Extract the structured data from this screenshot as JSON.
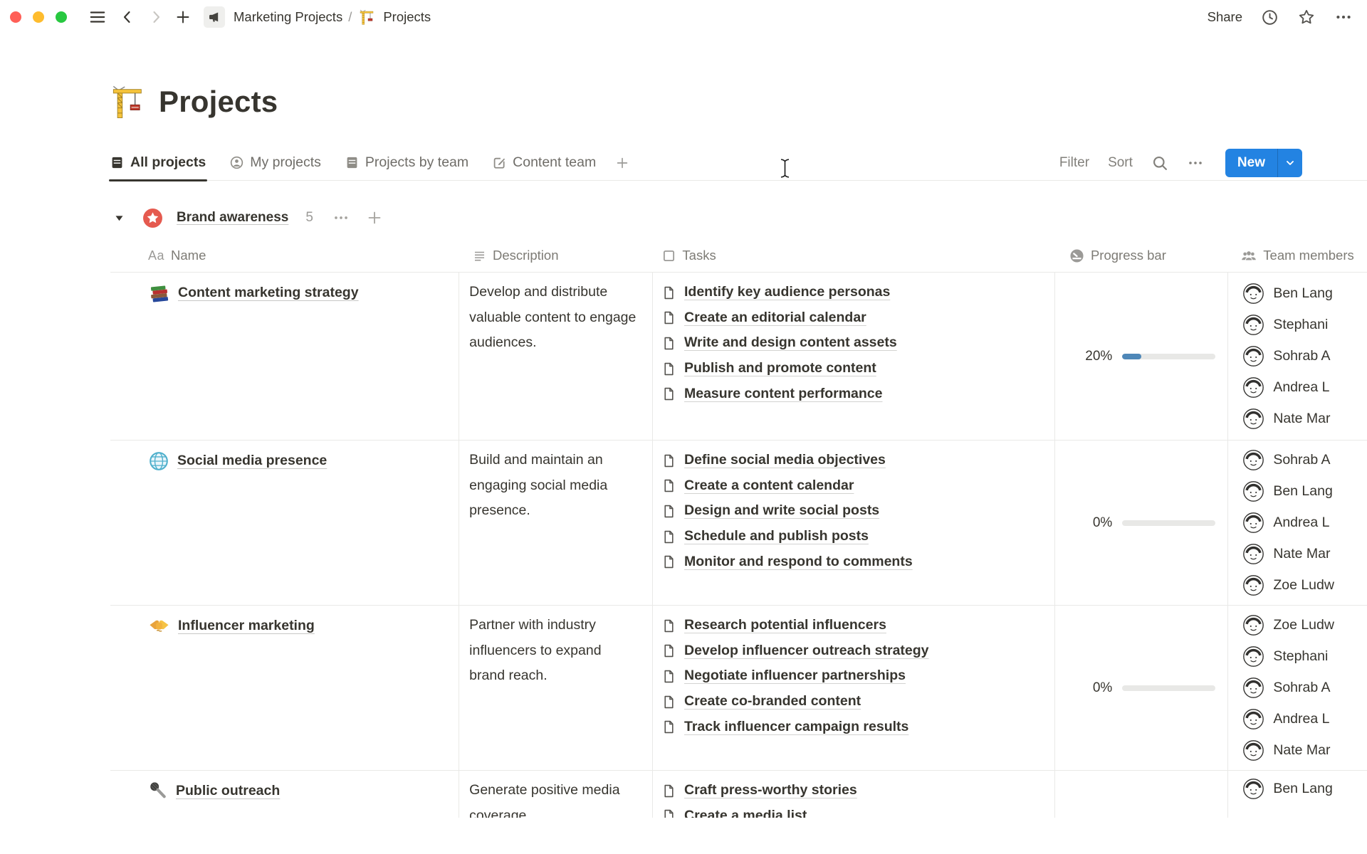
{
  "window": {
    "breadcrumb": {
      "root": "Marketing Projects",
      "separator": "/",
      "current": "Projects"
    },
    "actions": {
      "share": "Share"
    }
  },
  "page": {
    "icon": "crane-icon",
    "title": "Projects"
  },
  "tabs": [
    {
      "label": "All projects",
      "icon": "table-icon",
      "active": true
    },
    {
      "label": "My projects",
      "icon": "person-circle-icon",
      "active": false
    },
    {
      "label": "Projects by team",
      "icon": "table-icon",
      "active": false
    },
    {
      "label": "Content team",
      "icon": "edit-icon",
      "active": false
    }
  ],
  "toolbar": {
    "filter": "Filter",
    "sort": "Sort",
    "new_label": "New"
  },
  "group": {
    "name": "Brand awareness",
    "count": "5"
  },
  "table": {
    "columns": [
      {
        "key": "name",
        "icon": "text-icon",
        "label": "Name"
      },
      {
        "key": "desc",
        "icon": "lines-icon",
        "label": "Description"
      },
      {
        "key": "tasks",
        "icon": "checkbox-icon",
        "label": "Tasks"
      },
      {
        "key": "progress",
        "icon": "gauge-icon",
        "label": "Progress bar"
      },
      {
        "key": "team",
        "icon": "people-icon",
        "label": "Team members"
      }
    ],
    "rows": [
      {
        "icon": "books-icon",
        "name": "Content marketing strategy",
        "description": "Develop and distribute valuable content to engage audiences.",
        "tasks": [
          "Identify key audience personas",
          "Create an editorial calendar",
          "Write and design content assets",
          "Publish and promote content",
          "Measure content performance"
        ],
        "progress": {
          "label": "20%",
          "value": 20
        },
        "members": [
          "Ben Lang",
          "Stephani",
          "Sohrab A",
          "Andrea L",
          "Nate Mar"
        ]
      },
      {
        "icon": "globe-icon",
        "name": "Social media presence",
        "description": "Build and maintain an engaging social media presence.",
        "tasks": [
          "Define social media objectives",
          "Create a content calendar",
          "Design and write social posts",
          "Schedule and publish posts",
          "Monitor and respond to comments"
        ],
        "progress": {
          "label": "0%",
          "value": 0
        },
        "members": [
          "Sohrab A",
          "Ben Lang",
          "Andrea L",
          "Nate Mar",
          "Zoe Ludw"
        ]
      },
      {
        "icon": "handshake-icon",
        "name": "Influencer marketing",
        "description": "Partner with industry influencers to expand brand reach.",
        "tasks": [
          "Research potential influencers",
          "Develop influencer outreach strategy",
          "Negotiate influencer partnerships",
          "Create co-branded content",
          "Track influencer campaign results"
        ],
        "progress": {
          "label": "0%",
          "value": 0
        },
        "members": [
          "Zoe Ludw",
          "Stephani",
          "Sohrab A",
          "Andrea L",
          "Nate Mar"
        ]
      },
      {
        "icon": "microphone-icon",
        "name": "Public outreach",
        "description": "Generate positive media coverage.",
        "tasks": [
          "Craft press-worthy stories",
          "Create a media list"
        ],
        "progress": null,
        "members": [
          "Ben Lang"
        ]
      }
    ]
  },
  "colors": {
    "accent_blue": "#2383e2",
    "progress_fill": "#4e87b8",
    "progress_track": "#e8e8e6",
    "group_badge_red": "#e55a4f"
  }
}
